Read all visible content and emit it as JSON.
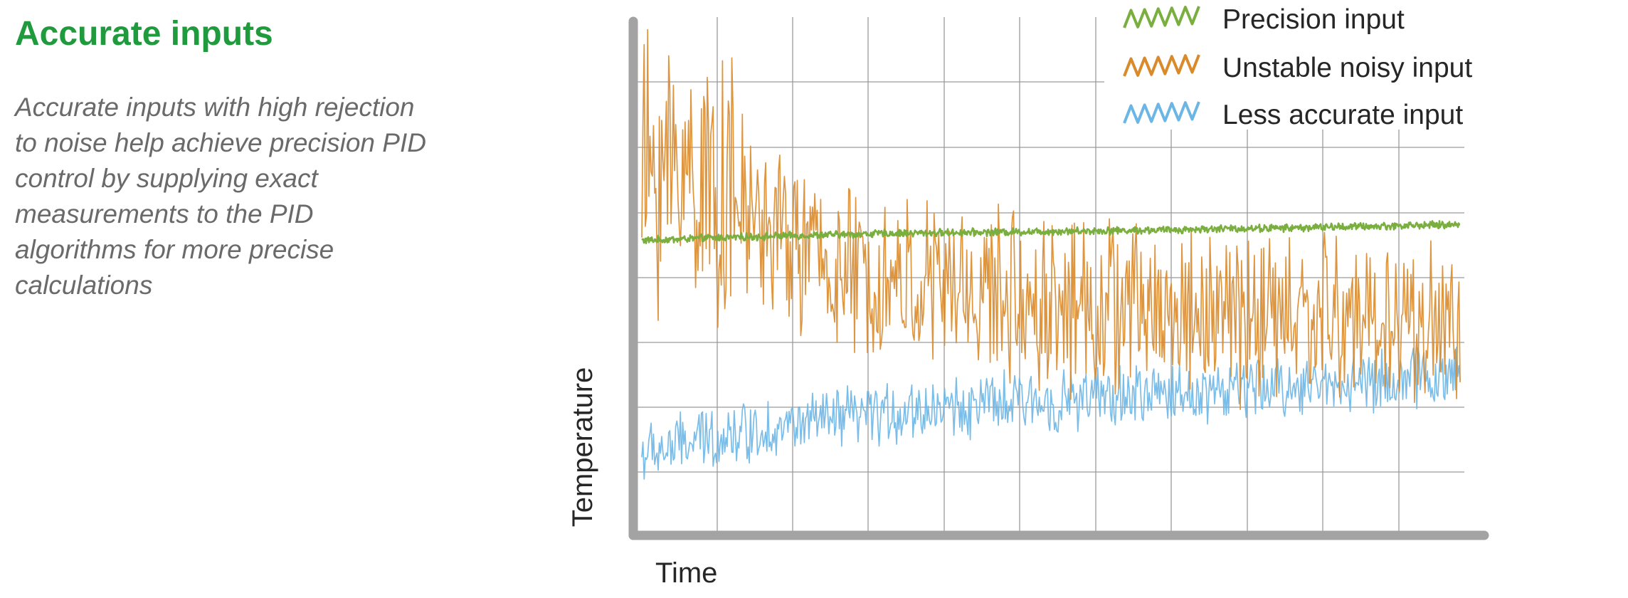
{
  "page": {
    "heading": "Accurate inputs",
    "description": "Accurate inputs with high rejection to noise help achieve precision PID control by supplying exact measurements to the PID algorithms for more precise calculations"
  },
  "chart_data": {
    "type": "line",
    "title": "",
    "xlabel": "Time",
    "ylabel": "Temperature",
    "x_tick_labels": false,
    "y_tick_labels": false,
    "grid": true,
    "xlim": [
      0,
      100
    ],
    "ylim": [
      0,
      100
    ],
    "legend": {
      "placement": "top-right"
    },
    "x": [
      0,
      5,
      10,
      15,
      20,
      25,
      30,
      35,
      40,
      45,
      50,
      55,
      60,
      65,
      70,
      75,
      80,
      85,
      90,
      95,
      100
    ],
    "series": [
      {
        "name": "Precision input",
        "color": "#7aaf3f",
        "noise_amplitude": 0.6,
        "values": [
          57,
          57.3,
          57.6,
          57.8,
          58.0,
          58.2,
          58.4,
          58.5,
          58.6,
          58.7,
          58.8,
          58.9,
          59.0,
          59.1,
          59.3,
          59.4,
          59.5,
          59.7,
          59.8,
          60.0,
          60.1
        ]
      },
      {
        "name": "Unstable noisy input",
        "color": "#d98a2b",
        "noise_amplitude": 14,
        "values": [
          70,
          72,
          66,
          60,
          55,
          50,
          49,
          48,
          47,
          46,
          45,
          44,
          44,
          43,
          43,
          42,
          42,
          42,
          41,
          41,
          40
        ]
      },
      {
        "name": "Less accurate input",
        "color": "#6cb6e6",
        "noise_amplitude": 5,
        "values": [
          15,
          17,
          19,
          20,
          21,
          22,
          23,
          24,
          24.5,
          25,
          25.5,
          26,
          26.5,
          27,
          27.5,
          28,
          28.5,
          29,
          29.5,
          30,
          30.5
        ]
      }
    ]
  }
}
